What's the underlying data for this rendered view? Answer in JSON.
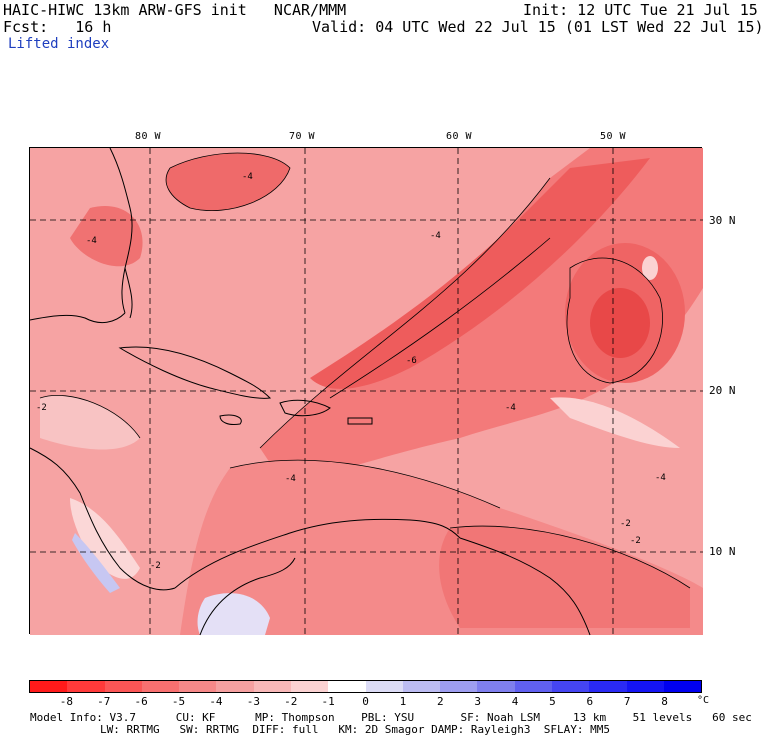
{
  "header": {
    "model_title": "HAIC-HIWC 13km ARW-GFS init   NCAR/MMM",
    "init_time": "Init: 12 UTC Tue 21 Jul 15",
    "forecast_label": "Fcst:   16 h",
    "valid_time": "Valid: 04 UTC Wed 22 Jul 15 (01 LST Wed 22 Jul 15)",
    "field_name": "Lifted index"
  },
  "map": {
    "longitude_labels": [
      "80 W",
      "70 W",
      "60 W",
      "50 W"
    ],
    "latitude_labels": [
      "30 N",
      "20 N",
      "10 N"
    ],
    "contour_labels": [
      "-4",
      "-4",
      "-6",
      "-4",
      "-2",
      "-4",
      "-2",
      "-4",
      "-4",
      "-2",
      "-2"
    ]
  },
  "colorbar": {
    "tick_labels": [
      "-8",
      "-7",
      "-6",
      "-5",
      "-4",
      "-3",
      "-2",
      "-1",
      "0",
      "1",
      "2",
      "3",
      "4",
      "5",
      "6",
      "7",
      "8"
    ],
    "unit": "°C",
    "colors": [
      "#ff1a1a",
      "#ff3a3a",
      "#fb5656",
      "#f87070",
      "#f68888",
      "#f5a0a0",
      "#f8b8b8",
      "#fbd2d2",
      "#ffffff",
      "#dcdcf6",
      "#bcbcf2",
      "#9e9ef0",
      "#7f7fee",
      "#6060f0",
      "#4545f2",
      "#2a2af4",
      "#1414f4",
      "#0000f0"
    ]
  },
  "model_info": {
    "line1": "Model Info: V3.7      CU: KF      MP: Thompson    PBL: YSU       SF: Noah LSM     13 km    51 levels   60 sec",
    "line2": "LW: RRTMG   SW: RRTMG  DIFF: full   KM: 2D Smagor DAMP: Rayleigh3  SFLAY: MM5"
  }
}
